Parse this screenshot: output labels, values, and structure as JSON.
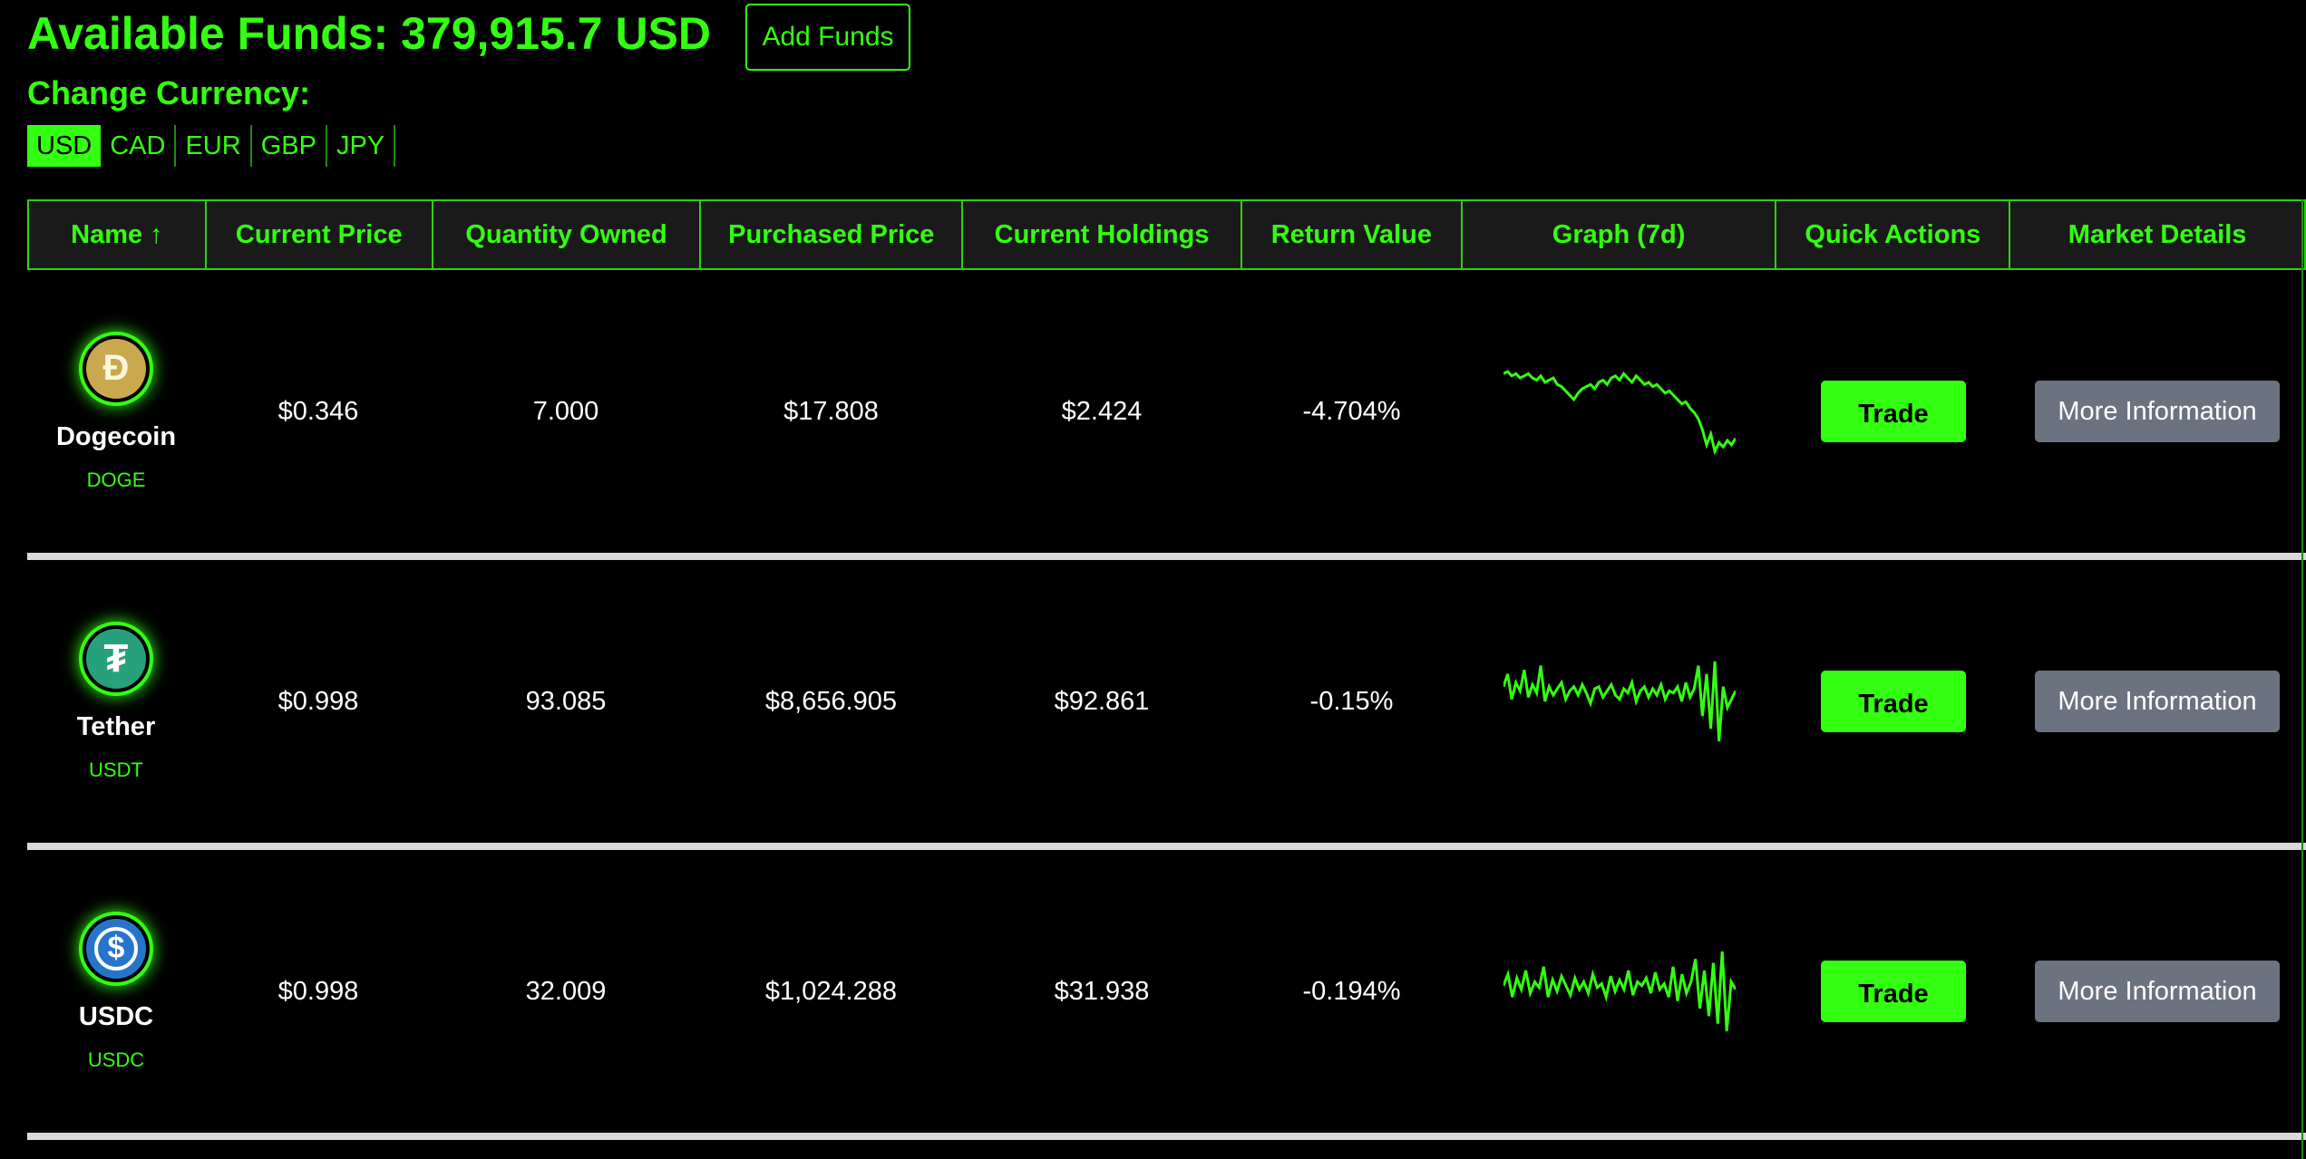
{
  "header": {
    "funds_label": "Available Funds: 379,915.7 USD",
    "add_funds_label": "Add Funds",
    "change_currency_label": "Change Currency:",
    "currencies": [
      "USD",
      "CAD",
      "EUR",
      "GBP",
      "JPY"
    ],
    "selected_currency": "USD"
  },
  "table": {
    "columns": [
      "Name ↑",
      "Current Price",
      "Quantity Owned",
      "Purchased Price",
      "Current Holdings",
      "Return Value",
      "Graph (7d)",
      "Quick Actions",
      "Market Details"
    ],
    "rows": [
      {
        "name": "Dogecoin",
        "symbol": "DOGE",
        "icon": "dogecoin-icon",
        "current_price": "$0.346",
        "quantity": "7.000",
        "purchased_price": "$17.808",
        "holdings": "$2.424",
        "return_value": "-4.704%",
        "trade_label": "Trade",
        "info_label": "More Information",
        "trend": [
          12,
          11,
          13,
          12,
          14,
          13,
          12,
          14,
          15,
          13,
          16,
          15,
          14,
          17,
          18,
          20,
          22,
          24,
          21,
          19,
          18,
          17,
          19,
          16,
          15,
          17,
          14,
          13,
          15,
          12,
          14,
          16,
          13,
          15,
          17,
          16,
          18,
          17,
          19,
          21,
          20,
          22,
          24,
          26,
          25,
          28,
          30,
          33,
          38,
          45,
          40,
          48,
          44,
          46,
          43,
          45,
          42
        ]
      },
      {
        "name": "Tether",
        "symbol": "USDT",
        "icon": "tether-icon",
        "current_price": "$0.998",
        "quantity": "93.085",
        "purchased_price": "$8,656.905",
        "holdings": "$92.861",
        "return_value": "-0.15%",
        "trade_label": "Trade",
        "info_label": "More Information",
        "trend": [
          20,
          14,
          26,
          18,
          22,
          12,
          25,
          19,
          23,
          10,
          27,
          20,
          24,
          21,
          18,
          26,
          22,
          20,
          24,
          19,
          23,
          28,
          21,
          20,
          25,
          22,
          19,
          24,
          26,
          21,
          23,
          18,
          27,
          22,
          20,
          25,
          21,
          24,
          19,
          26,
          22,
          23,
          20,
          27,
          18,
          25,
          21,
          10,
          34,
          14,
          40,
          8,
          46,
          20,
          30,
          26,
          22
        ]
      },
      {
        "name": "USDC",
        "symbol": "USDC",
        "icon": "usdc-icon",
        "current_price": "$0.998",
        "quantity": "32.009",
        "purchased_price": "$1,024.288",
        "holdings": "$31.938",
        "return_value": "-0.194%",
        "trade_label": "Trade",
        "info_label": "More Information",
        "trend": [
          24,
          18,
          30,
          20,
          26,
          16,
          28,
          22,
          25,
          14,
          30,
          21,
          27,
          19,
          24,
          29,
          20,
          26,
          22,
          28,
          18,
          25,
          23,
          30,
          19,
          27,
          21,
          26,
          16,
          29,
          22,
          24,
          20,
          28,
          17,
          26,
          23,
          30,
          14,
          32,
          18,
          28,
          22,
          10,
          36,
          16,
          40,
          12,
          44,
          6,
          48,
          22,
          26
        ]
      }
    ]
  },
  "colors": {
    "accent": "#33ff11",
    "background": "#000000",
    "header_bg": "#1a1a1a",
    "info_button": "#6b7280"
  }
}
